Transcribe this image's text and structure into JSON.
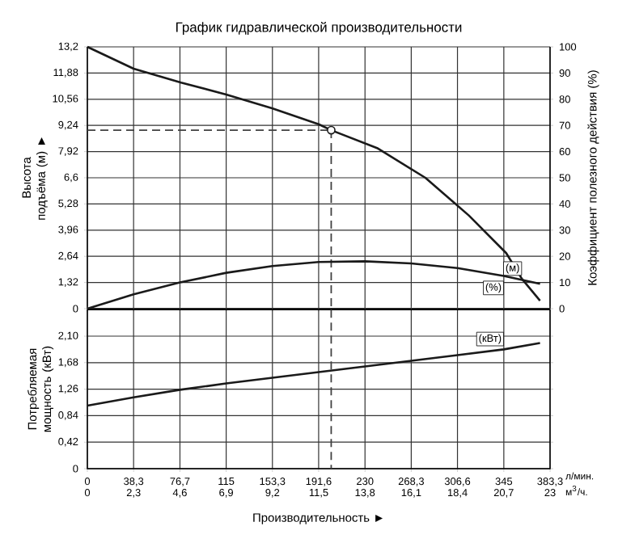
{
  "chart_data": [
    {
      "type": "line",
      "title": "График гидравлической производительности",
      "ylabel": "Высота подъёма (м) ►",
      "y2label": "Коэффициент полезного действия (%)",
      "xlim": [
        0,
        383.3
      ],
      "xticks": [
        0,
        38.3,
        76.7,
        115,
        153.3,
        191.6,
        230,
        268.3,
        306.6,
        345,
        383.3
      ],
      "ylim": [
        0,
        13.2
      ],
      "yticks": [
        0,
        {
          "value": 1.32,
          "label": "1,32"
        },
        {
          "value": 2.64,
          "label": "2,64"
        },
        {
          "value": 3.96,
          "label": "3,96"
        },
        {
          "value": 5.28,
          "label": "5,28"
        },
        {
          "value": 6.6,
          "label": "6,6"
        },
        {
          "value": 7.92,
          "label": "7,92"
        },
        {
          "value": 9.24,
          "label": "9,24"
        },
        {
          "value": 10.56,
          "label": "10,56"
        },
        {
          "value": 11.88,
          "label": "11,88"
        },
        {
          "value": 13.2,
          "label": "13,2"
        }
      ],
      "y2lim": [
        0,
        100
      ],
      "y2ticks": [
        0,
        10,
        20,
        30,
        40,
        50,
        60,
        70,
        80,
        90,
        100
      ],
      "grid": true,
      "tick_labels": "y",
      "series": [
        {
          "name": "(м)",
          "color": "#1a1a1a",
          "x": [
            0,
            38.3,
            77.7,
            115,
            153,
            191.6,
            202,
            240,
            280,
            316,
            347,
            360,
            375
          ],
          "values": [
            13.2,
            12.1,
            11.4,
            10.8,
            10.1,
            9.3,
            9.0,
            8.1,
            6.6,
            4.7,
            2.8,
            1.5,
            0.4
          ]
        },
        {
          "name": "(%)",
          "color": "#1a1a1a",
          "axis": "y2",
          "x": [
            0,
            38.3,
            76.7,
            115,
            153.3,
            191.6,
            230,
            268.3,
            306.6,
            345,
            375
          ],
          "values": [
            0,
            5.5,
            10,
            13.7,
            16.3,
            17.8,
            18.1,
            17.3,
            15.5,
            12.5,
            9.5
          ]
        },
        {
          "type": "scatter",
          "marker": "circle",
          "color": "#1a1a1a",
          "x": [
            202
          ],
          "values": [
            9.0
          ]
        }
      ],
      "ref_lines": [
        {
          "axis": "y",
          "value": 9.0,
          "line_style": "dashed"
        },
        {
          "axis": "x",
          "value": 202,
          "line_style": "dashed"
        }
      ]
    },
    {
      "type": "line",
      "ylabel": "Потребляемая мощность (кВт)",
      "xlabel": "Производительность ►",
      "xlim": [
        0,
        383.3
      ],
      "xticks": [
        0,
        {
          "value": 38.3,
          "label": "38,3"
        },
        {
          "value": 76.7,
          "label": "76,7"
        },
        115,
        {
          "value": 153.3,
          "label": "153,3"
        },
        {
          "value": 191.6,
          "label": "191,6"
        },
        230,
        {
          "value": 268.3,
          "label": "268,3"
        },
        {
          "value": 306.6,
          "label": "306,6"
        },
        345,
        {
          "value": 383.3,
          "label": "383,3"
        }
      ],
      "x2lim": [
        0,
        23
      ],
      "x2ticks": [
        0,
        {
          "value": 2.3,
          "label": "2,3"
        },
        {
          "value": 4.6,
          "label": "4,6"
        },
        {
          "value": 6.9,
          "label": "6,9"
        },
        {
          "value": 9.2,
          "label": "9,2"
        },
        {
          "value": 11.5,
          "label": "11,5"
        },
        {
          "value": 13.8,
          "label": "13,8"
        },
        {
          "value": 16.1,
          "label": "16,1"
        },
        {
          "value": 18.4,
          "label": "18,4"
        },
        {
          "value": 20.7,
          "label": "20,7"
        },
        23
      ],
      "ylim": [
        0,
        2.52
      ],
      "yticks": [
        0,
        {
          "value": 0.42,
          "label": "0,42"
        },
        {
          "value": 0.84,
          "label": "0,84"
        },
        {
          "value": 1.26,
          "label": "1,26"
        },
        {
          "value": 1.68,
          "label": "1,68"
        },
        {
          "value": 2.1,
          "label": "2,10"
        }
      ],
      "grid": true,
      "series": [
        {
          "name": "(кВт)",
          "color": "#1a1a1a",
          "x": [
            0,
            38.3,
            76.7,
            115,
            153.3,
            191.6,
            230,
            268.3,
            306.6,
            345,
            375
          ],
          "values": [
            1.0,
            1.13,
            1.25,
            1.35,
            1.44,
            1.53,
            1.62,
            1.71,
            1.8,
            1.89,
            1.99
          ]
        }
      ],
      "ref_lines": [
        {
          "axis": "x",
          "value": 202,
          "line_style": "dashed"
        }
      ],
      "annotations": [
        "л/мин.",
        "м$^{3}$/ч."
      ]
    }
  ]
}
